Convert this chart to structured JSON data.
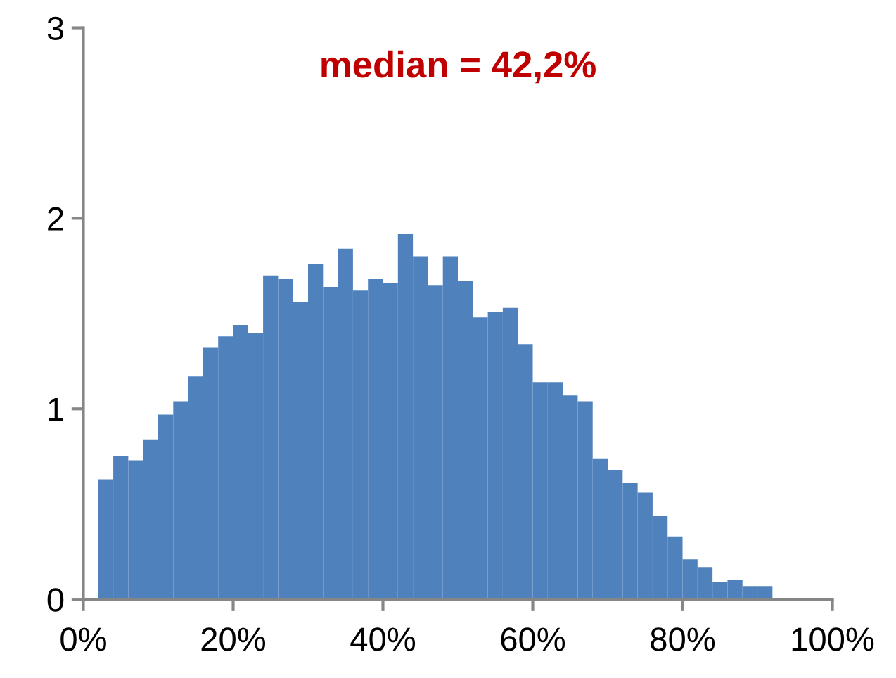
{
  "chart_data": {
    "type": "histogram",
    "title": "median = 42,2%",
    "bins": [
      2,
      4,
      6,
      8,
      10,
      12,
      14,
      16,
      18,
      20,
      22,
      24,
      26,
      28,
      30,
      32,
      34,
      36,
      38,
      40,
      42,
      44,
      46,
      48,
      50,
      52,
      54,
      56,
      58,
      60,
      62,
      64,
      66,
      68,
      70,
      72,
      74,
      76,
      78,
      80,
      82,
      84,
      86,
      88,
      90,
      92
    ],
    "values": [
      0.63,
      0.75,
      0.73,
      0.84,
      0.97,
      1.04,
      1.17,
      1.32,
      1.38,
      1.44,
      1.4,
      1.7,
      1.68,
      1.56,
      1.76,
      1.64,
      1.84,
      1.62,
      1.68,
      1.66,
      1.92,
      1.8,
      1.65,
      1.8,
      1.67,
      1.48,
      1.51,
      1.53,
      1.34,
      1.14,
      1.14,
      1.07,
      1.04,
      0.74,
      0.68,
      0.61,
      0.56,
      0.44,
      0.33,
      0.21,
      0.17,
      0.09,
      0.1,
      0.07,
      0.07
    ],
    "color": "#4f81bd",
    "xlim": [
      0,
      100
    ],
    "xticks": [
      {
        "value": 0,
        "label": "0%"
      },
      {
        "value": 20,
        "label": "20%"
      },
      {
        "value": 40,
        "label": "40%"
      },
      {
        "value": 60,
        "label": "60%"
      },
      {
        "value": 80,
        "label": "80%"
      },
      {
        "value": 100,
        "label": "100%"
      }
    ],
    "ylim": [
      0,
      3
    ],
    "yticks": [
      0,
      1,
      2,
      3
    ],
    "grid": false,
    "legend": false
  }
}
